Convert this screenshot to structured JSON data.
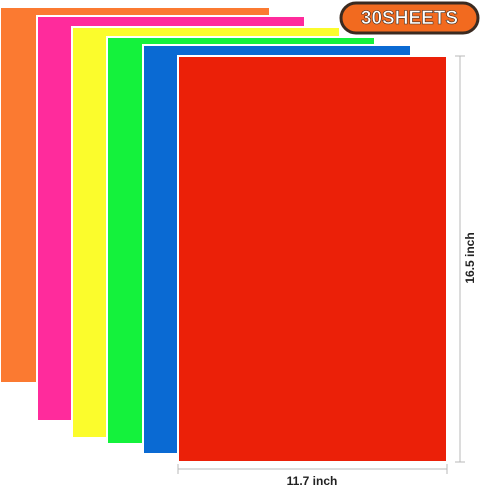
{
  "badge": "30SHEETS",
  "dimensions": {
    "height": "16.5 inch",
    "width": "11.7 inch"
  }
}
